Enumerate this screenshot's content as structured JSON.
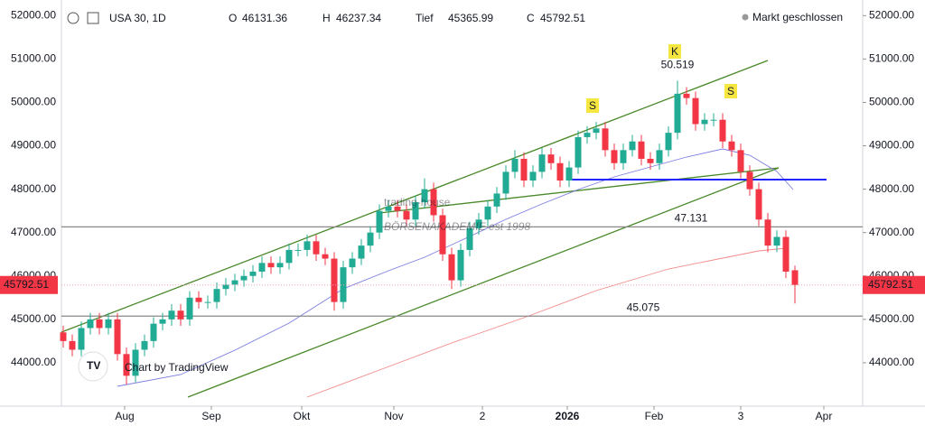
{
  "header": {
    "symbol": "USA 30, 1D",
    "o_label": "O",
    "o": "46131.36",
    "h_label": "H",
    "h": "46237.34",
    "l_label": "Tief",
    "l": "45365.99",
    "c_label": "C",
    "c": "45792.51",
    "status": "Markt geschlossen"
  },
  "watermark": {
    "logo": "trading-house",
    "sub": "BÖRSENAKADEMIE est 1998",
    "credit": "Chart by TradingView"
  },
  "chart_data": {
    "type": "candlestick",
    "up_color": "#22ab94",
    "down_color": "#f23645",
    "open": [
      44700,
      44500,
      44300,
      44800,
      45000,
      44800,
      45000,
      44200,
      43700,
      44300,
      44500,
      44900,
      45000,
      45200,
      45000,
      45500,
      45400,
      45400,
      45700,
      45800,
      45900,
      46000,
      46100,
      46300,
      46200,
      46300,
      46600,
      46600,
      46800,
      46500,
      46400,
      45400,
      46200,
      46400,
      46700,
      47000,
      47500,
      47600,
      47500,
      47300,
      47700,
      48000,
      47400,
      46500,
      45900,
      46600,
      47100,
      47300,
      47600,
      47900,
      48400,
      48700,
      48200,
      48400,
      48800,
      48600,
      48200,
      48500,
      49200,
      49300,
      49400,
      48900,
      48600,
      48900,
      49100,
      48700,
      48600,
      48900,
      49300,
      50200,
      50100,
      49500,
      49600,
      49600,
      49100,
      48900,
      48400,
      48000,
      47300,
      46700,
      46900,
      46131.36
    ],
    "high": [
      44850,
      44650,
      44950,
      45150,
      45150,
      45150,
      45150,
      44350,
      44450,
      44650,
      45050,
      45150,
      45350,
      45350,
      45650,
      45650,
      45550,
      45850,
      45950,
      46050,
      46150,
      46250,
      46450,
      46450,
      46450,
      46750,
      46750,
      46950,
      46950,
      46650,
      46550,
      46350,
      46550,
      46850,
      47150,
      47650,
      47750,
      47750,
      47650,
      47850,
      48250,
      48150,
      47550,
      46650,
      46750,
      47250,
      47450,
      47750,
      48050,
      48550,
      48900,
      48850,
      48550,
      48950,
      48950,
      48750,
      48650,
      49350,
      49450,
      49550,
      49550,
      49050,
      49050,
      49250,
      49250,
      48850,
      49050,
      49450,
      50500,
      50350,
      50250,
      49750,
      49750,
      49750,
      49250,
      49050,
      48550,
      48150,
      47450,
      47050,
      47050,
      46237.34
    ],
    "low": [
      44350,
      44150,
      44150,
      44650,
      44650,
      44650,
      44050,
      43500,
      43550,
      44150,
      44350,
      44750,
      44850,
      44850,
      44850,
      45250,
      45250,
      45250,
      45550,
      45650,
      45750,
      45850,
      45950,
      46050,
      46050,
      46150,
      46450,
      46450,
      46350,
      46250,
      45200,
      45250,
      46050,
      46250,
      46550,
      46850,
      47350,
      47350,
      47150,
      47150,
      47550,
      47250,
      46350,
      45700,
      45750,
      46450,
      46950,
      47150,
      47450,
      47750,
      48250,
      48050,
      48050,
      48250,
      48450,
      48050,
      48050,
      48350,
      49050,
      49150,
      48750,
      48450,
      48450,
      48750,
      48550,
      48450,
      48450,
      48750,
      49150,
      49950,
      49350,
      49350,
      49450,
      48950,
      48750,
      48250,
      47850,
      47150,
      46550,
      46550,
      45950,
      45365.99
    ],
    "close": [
      44500,
      44300,
      44800,
      45000,
      44800,
      45000,
      44200,
      43700,
      44300,
      44500,
      44900,
      45000,
      45200,
      45000,
      45500,
      45400,
      45400,
      45700,
      45800,
      45900,
      46000,
      46100,
      46300,
      46200,
      46300,
      46600,
      46600,
      46800,
      46500,
      46400,
      45400,
      46200,
      46400,
      46700,
      47000,
      47500,
      47600,
      47500,
      47300,
      47700,
      48000,
      47400,
      46500,
      45900,
      46600,
      47100,
      47300,
      47600,
      47900,
      48400,
      48700,
      48200,
      48400,
      48800,
      48600,
      48200,
      48500,
      49200,
      49300,
      49400,
      48900,
      48600,
      48900,
      49100,
      48700,
      48600,
      48900,
      49300,
      50200,
      50100,
      49500,
      49600,
      49600,
      49100,
      48900,
      48400,
      48000,
      47300,
      46700,
      46900,
      46100,
      45792.51
    ],
    "xlim": [
      -0.2,
      88.5
    ],
    "xticks": [
      {
        "value": 6.8,
        "label": "Aug"
      },
      {
        "value": 16.4,
        "label": "Sep"
      },
      {
        "value": 26.4,
        "label": "Okt"
      },
      {
        "value": 36.6,
        "label": "Nov"
      },
      {
        "value": 46.4,
        "label": "2"
      },
      {
        "value": 55.8,
        "label": "2026"
      },
      {
        "value": 65.4,
        "label": "Feb"
      },
      {
        "value": 75,
        "label": "3"
      },
      {
        "value": 84.2,
        "label": "Apr"
      }
    ],
    "ylim": [
      43000,
      52360
    ],
    "yticks": [
      {
        "value": 44000,
        "label": "44000.00"
      },
      {
        "value": 45000,
        "label": "45000.00"
      },
      {
        "value": 46000,
        "label": "46000.00"
      },
      {
        "value": 47000,
        "label": "47000.00"
      },
      {
        "value": 48000,
        "label": "48000.00"
      },
      {
        "value": 49000,
        "label": "49000.00"
      },
      {
        "value": 50000,
        "label": "50000.00"
      },
      {
        "value": 51000,
        "label": "51000.00"
      },
      {
        "value": 52000,
        "label": "52000.00"
      }
    ],
    "last_price": {
      "value": 45792.51,
      "label": "45792.51"
    },
    "levels": [
      {
        "value": 47131,
        "label": "47.131"
      },
      {
        "value": 45075,
        "label": "45.075"
      }
    ],
    "peak": {
      "value": 50519,
      "label": "50.519"
    },
    "pattern_labels": [
      "S",
      "K",
      "S"
    ]
  }
}
